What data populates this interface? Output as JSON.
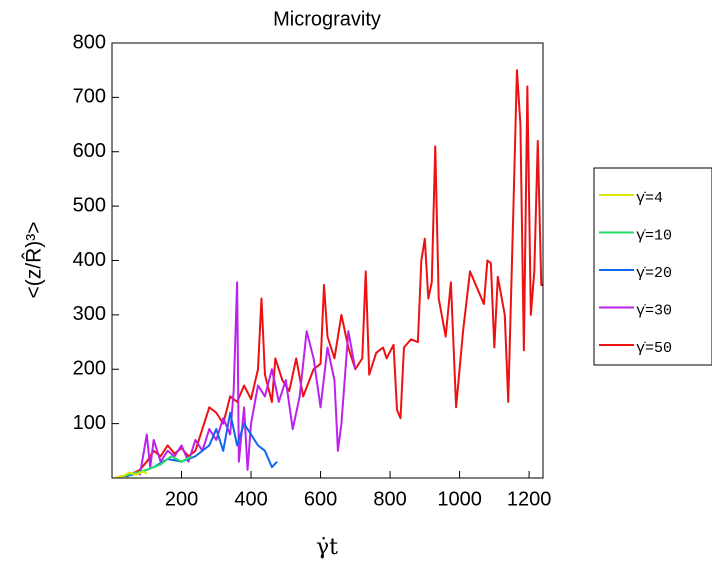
{
  "chart_data": {
    "type": "line",
    "title": "Microgravity",
    "x_label": "γ̇t",
    "y_label": "<(z/R̂)³>",
    "xlim": [
      0,
      1240
    ],
    "ylim": [
      0,
      800
    ],
    "xticks": [
      200,
      400,
      600,
      800,
      1000,
      1200
    ],
    "yticks": [
      100,
      200,
      300,
      400,
      500,
      600,
      700,
      800
    ],
    "series": [
      {
        "name": "γ̇=50",
        "color": "#ee1111",
        "x": [
          20,
          50,
          80,
          100,
          120,
          140,
          160,
          180,
          200,
          220,
          240,
          260,
          280,
          300,
          320,
          340,
          360,
          380,
          400,
          420,
          430,
          440,
          460,
          470,
          490,
          510,
          530,
          550,
          580,
          600,
          610,
          620,
          640,
          660,
          680,
          700,
          720,
          730,
          740,
          760,
          780,
          790,
          810,
          820,
          830,
          840,
          860,
          880,
          890,
          900,
          910,
          920,
          930,
          940,
          960,
          975,
          990,
          1010,
          1030,
          1050,
          1070,
          1080,
          1090,
          1100,
          1110,
          1130,
          1140,
          1155,
          1165,
          1175,
          1185,
          1195,
          1205,
          1215,
          1225,
          1235,
          1240
        ],
        "values": [
          2,
          5,
          15,
          30,
          50,
          40,
          60,
          45,
          55,
          40,
          50,
          90,
          130,
          120,
          100,
          150,
          140,
          170,
          145,
          200,
          330,
          190,
          140,
          220,
          180,
          160,
          220,
          150,
          200,
          210,
          355,
          260,
          220,
          300,
          240,
          200,
          220,
          380,
          190,
          230,
          240,
          220,
          245,
          125,
          110,
          240,
          255,
          250,
          400,
          440,
          330,
          360,
          610,
          330,
          260,
          360,
          130,
          270,
          380,
          350,
          320,
          400,
          395,
          240,
          370,
          300,
          140,
          500,
          750,
          650,
          235,
          720,
          300,
          380,
          620,
          355,
          355
        ]
      },
      {
        "name": "γ̇=30",
        "color": "#bb22ee",
        "x": [
          80,
          100,
          110,
          120,
          140,
          160,
          180,
          200,
          220,
          240,
          260,
          280,
          300,
          320,
          340,
          350,
          360,
          365,
          380,
          390,
          400,
          420,
          440,
          460,
          480,
          500,
          520,
          540,
          560,
          580,
          600,
          620,
          640,
          650,
          660,
          680,
          700
        ],
        "values": [
          5,
          80,
          20,
          70,
          30,
          50,
          40,
          60,
          30,
          70,
          50,
          90,
          70,
          110,
          80,
          160,
          360,
          30,
          130,
          15,
          100,
          170,
          150,
          200,
          140,
          180,
          90,
          150,
          270,
          220,
          130,
          240,
          180,
          50,
          100,
          270,
          200
        ]
      },
      {
        "name": "γ̇=20",
        "color": "#1166ee",
        "x": [
          40,
          80,
          120,
          160,
          200,
          240,
          280,
          300,
          320,
          340,
          360,
          380,
          400,
          420,
          440,
          460,
          475
        ],
        "values": [
          3,
          10,
          20,
          35,
          30,
          40,
          60,
          90,
          50,
          120,
          60,
          100,
          80,
          60,
          50,
          20,
          30
        ]
      },
      {
        "name": "γ̇=10",
        "color": "#22dd66",
        "x": [
          20,
          60,
          100,
          140,
          170,
          200,
          230
        ],
        "values": [
          2,
          8,
          15,
          25,
          40,
          30,
          40
        ]
      },
      {
        "name": "γ̇=4",
        "color": "#dde800",
        "x": [
          10,
          30,
          50,
          70,
          90,
          100
        ],
        "values": [
          1,
          3,
          10,
          6,
          12,
          8
        ]
      }
    ]
  }
}
